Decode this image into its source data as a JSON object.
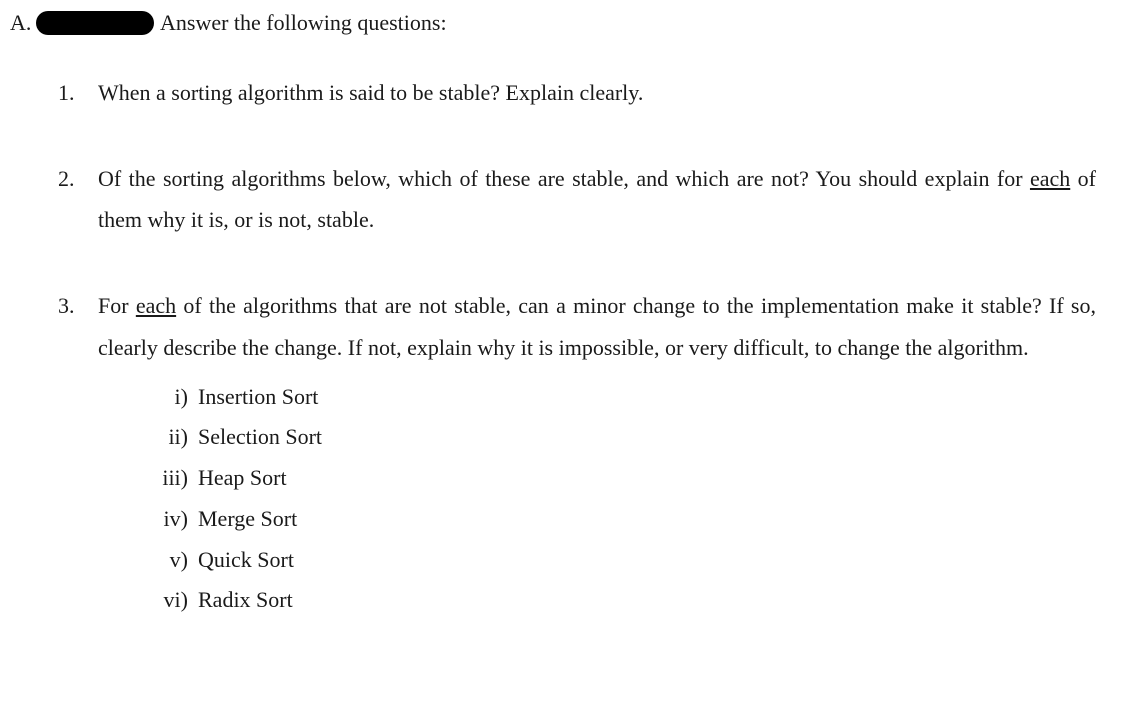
{
  "section_letter": "A.",
  "header_text": "Answer the following questions:",
  "questions": {
    "q1": {
      "num": "1.",
      "text": "When a sorting algorithm is said to be stable? Explain clearly."
    },
    "q2": {
      "num": "2.",
      "pre": "Of the sorting algorithms below, which of these are stable, and which are not? You should explain for ",
      "underlined": "each",
      "post": " of them why it is, or is not, stable."
    },
    "q3": {
      "num": "3.",
      "pre": "For ",
      "underlined": "each",
      "post": " of the algorithms that are not stable, can a minor change to the implementation make it stable? If so, clearly describe the change. If not, explain why it is impossible, or very difficult, to change the algorithm."
    }
  },
  "algorithms": {
    "i": {
      "roman": "i)",
      "name": "Insertion Sort"
    },
    "ii": {
      "roman": "ii)",
      "name": "Selection Sort"
    },
    "iii": {
      "roman": "iii)",
      "name": "Heap Sort"
    },
    "iv": {
      "roman": "iv)",
      "name": "Merge Sort"
    },
    "v": {
      "roman": "v)",
      "name": "Quick Sort"
    },
    "vi": {
      "roman": "vi)",
      "name": "Radix Sort"
    }
  }
}
